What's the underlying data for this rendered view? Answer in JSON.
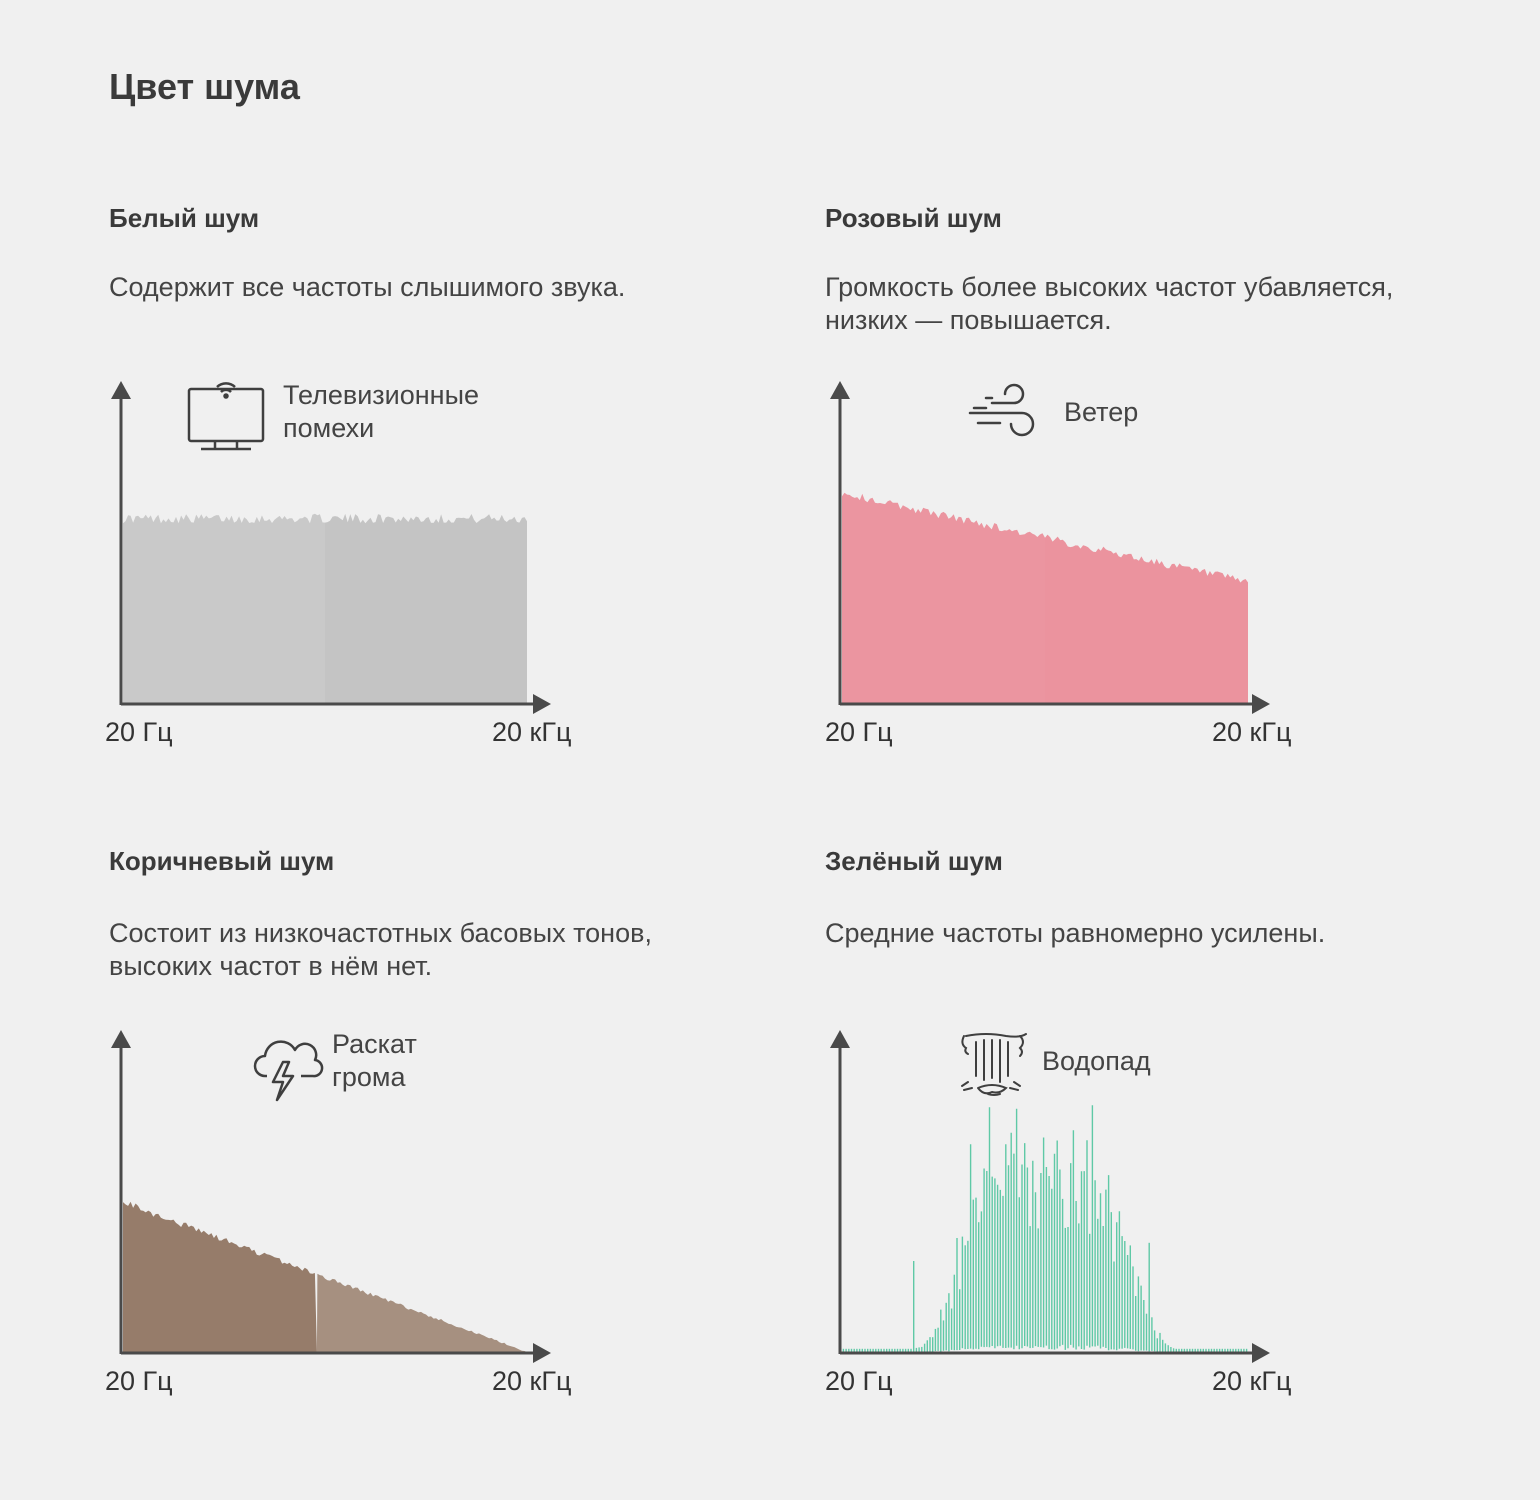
{
  "page": {
    "title": "Цвет шума"
  },
  "panels": [
    {
      "title": "Белый шум",
      "description": "Содержит все частоты слышимого звука.",
      "example_line1": "Телевизионные",
      "example_line2": "помехи",
      "icon": "tv-icon"
    },
    {
      "title": "Розовый шум",
      "description_line1": "Громкость более высоких частот убавляется,",
      "description_line2": "низких — повышается.",
      "example_line1": "Ветер",
      "icon": "wind-icon"
    },
    {
      "title": "Коричневый шум",
      "description_line1": "Состоит из низкочастотных басовых тонов,",
      "description_line2": "высоких частот в нём нет.",
      "example_line1": "Раскат",
      "example_line2": "грома",
      "icon": "thunderstorm-icon"
    },
    {
      "title": "Зелёный шум",
      "description": "Средние частоты равномерно усилены.",
      "example_line1": "Водопад",
      "icon": "waterfall-icon"
    }
  ],
  "axis": {
    "x_min_label": "20 Гц",
    "x_max_label": "20 кГц"
  },
  "chart_data": [
    {
      "type": "area",
      "title": "Белый шум",
      "x_range": [
        "20 Гц",
        "20 кГц"
      ],
      "y_level": [
        0.58,
        0.58
      ],
      "noise": 0.03,
      "color_left": "#c9c9c9",
      "color_right": "#c4c4c4"
    },
    {
      "type": "area",
      "title": "Розовый шум",
      "x_range": [
        "20 Гц",
        "20 кГц"
      ],
      "y_level": [
        0.66,
        0.38
      ],
      "noise": 0.025,
      "color_left": "#eb95a0",
      "color_right": "#eb939e"
    },
    {
      "type": "area",
      "title": "Коричневый шум",
      "x_range": [
        "20 Гц",
        "20 кГц"
      ],
      "y_level": [
        0.47,
        0.0
      ],
      "noise": 0.02,
      "color_left": "#967c6a",
      "color_right": "#a69080"
    },
    {
      "type": "bar",
      "title": "Зелёный шум",
      "x_range": [
        "20 Гц",
        "20 кГц"
      ],
      "envelope_peak": 0.55,
      "envelope_center": 0.5,
      "envelope_width": 0.22,
      "max_spike": 0.83,
      "color": "#5fc9a6"
    }
  ]
}
